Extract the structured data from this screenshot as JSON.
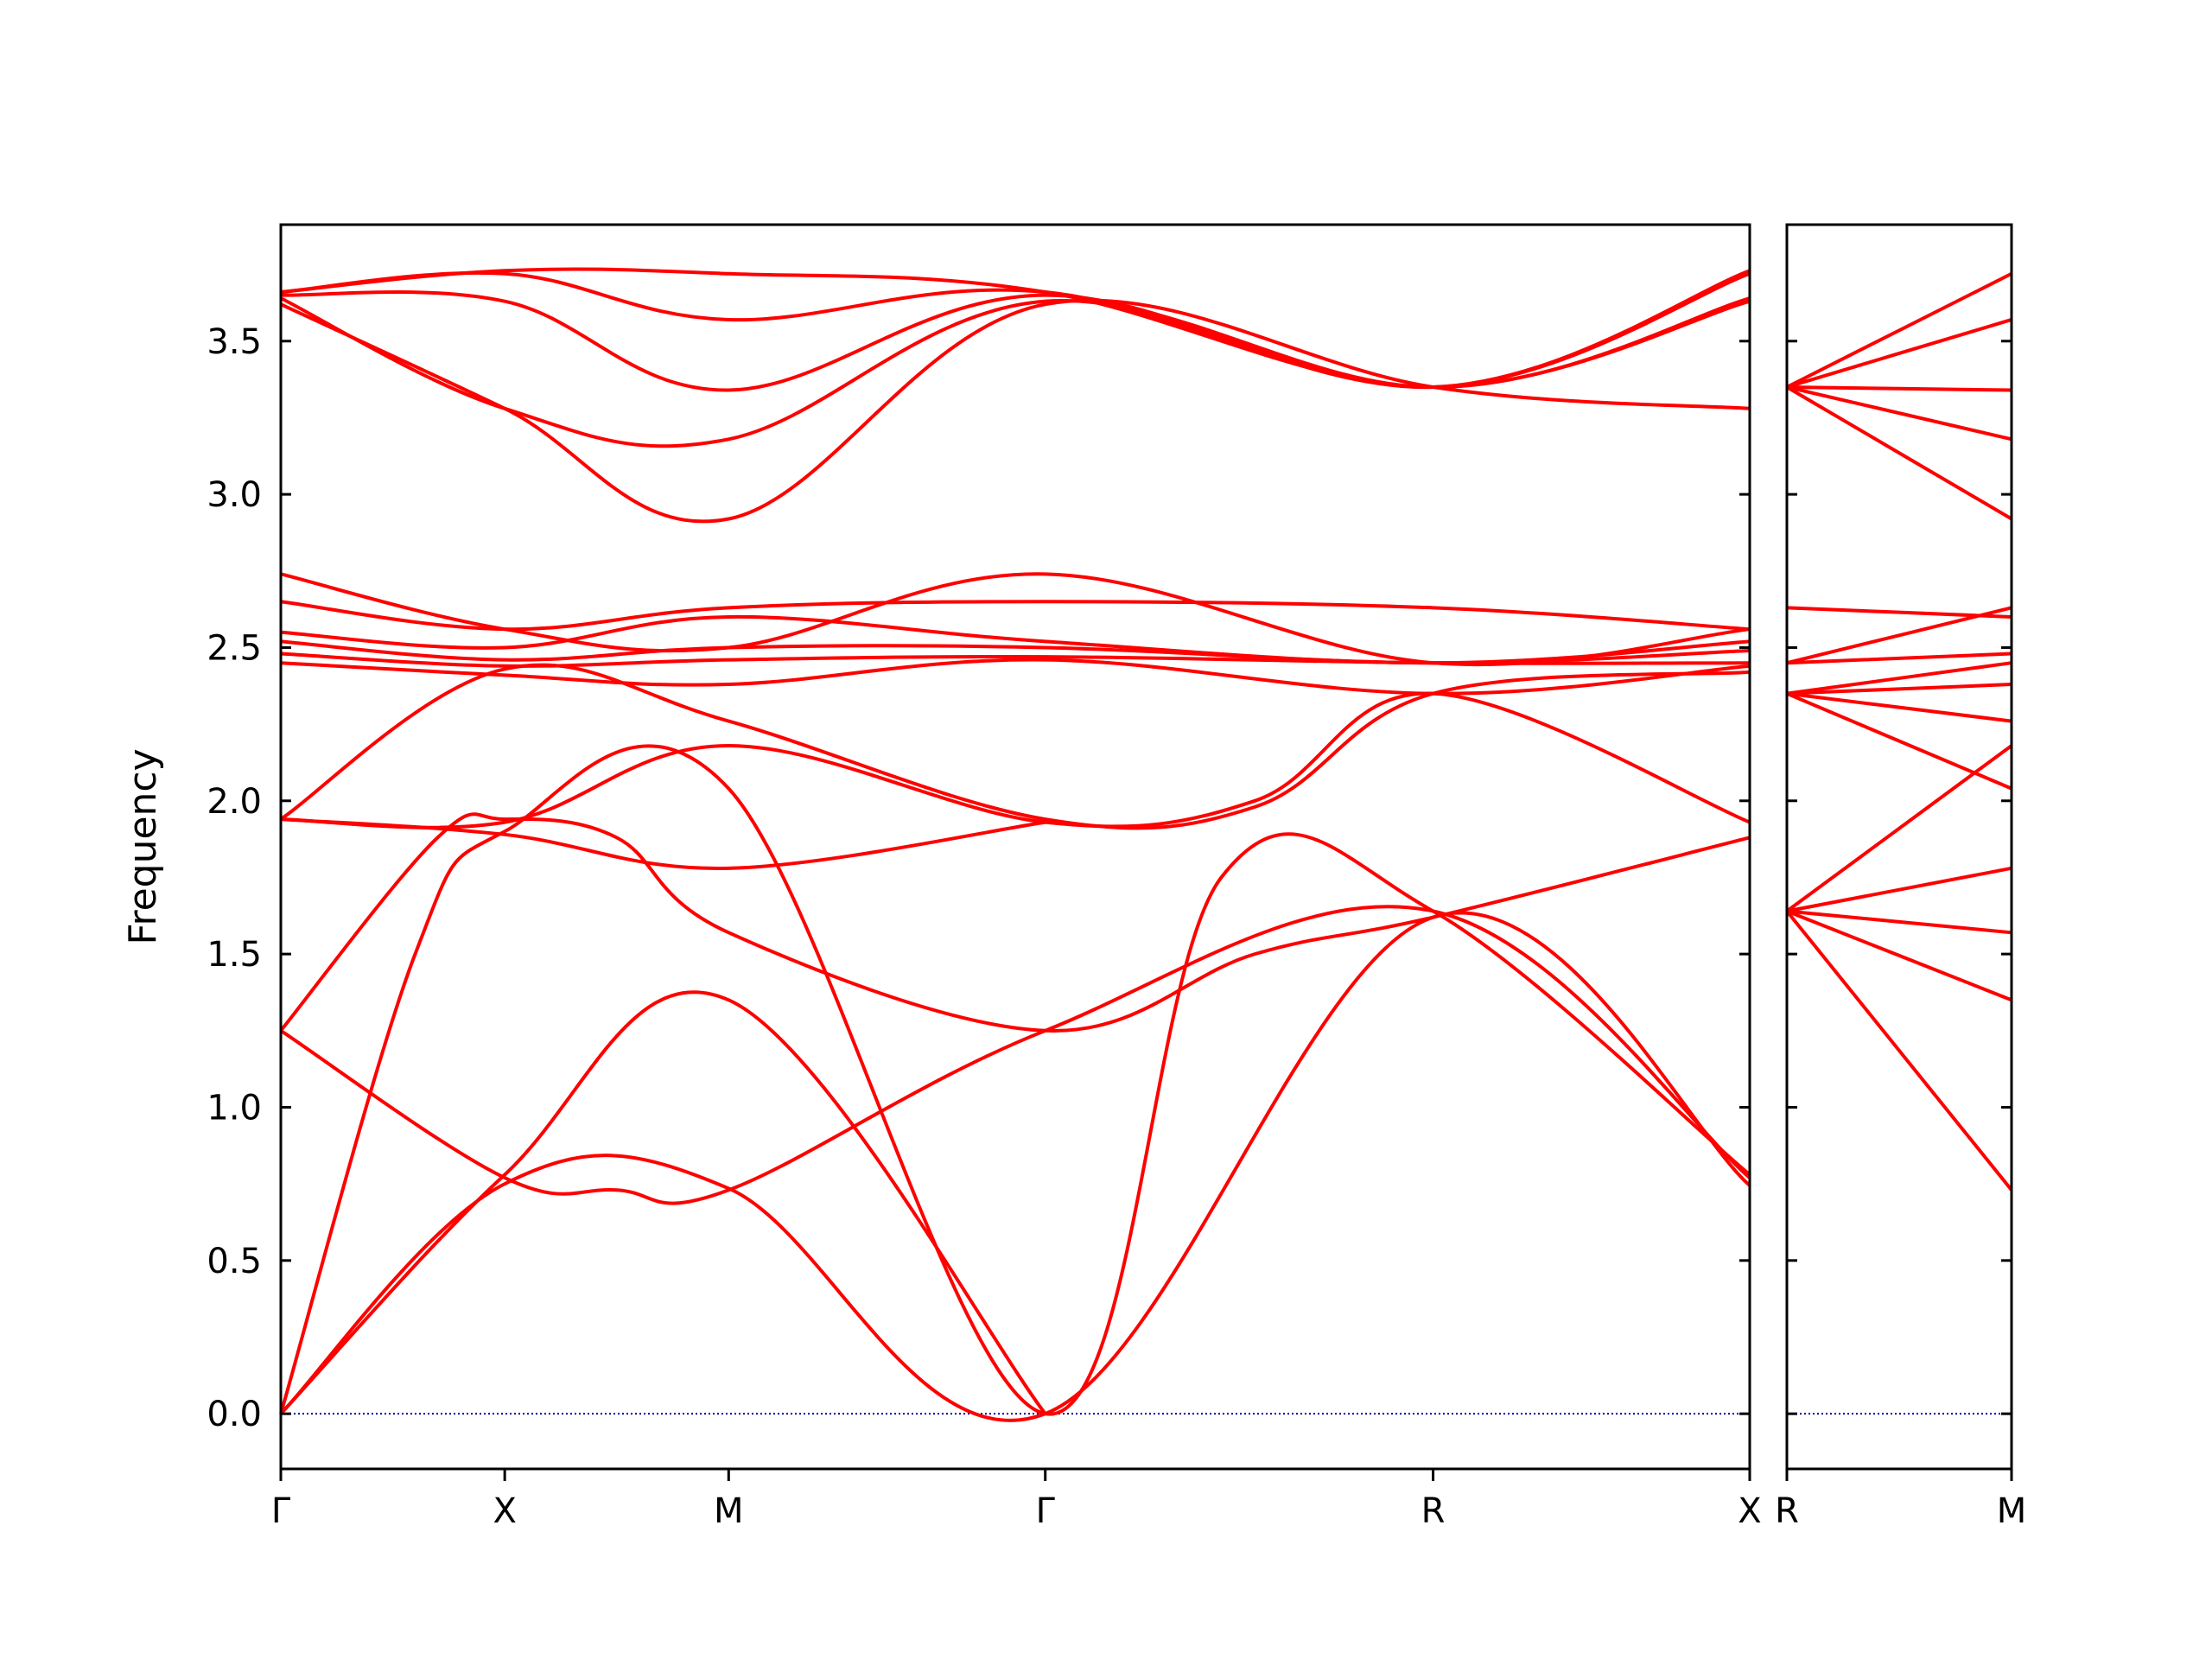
{
  "chart_data": {
    "type": "line",
    "ylabel": "Frequency",
    "ylim": [
      -0.18,
      3.88
    ],
    "yticks": [
      0.0,
      0.5,
      1.0,
      1.5,
      2.0,
      2.5,
      3.0,
      3.5
    ],
    "ytick_labels": [
      "0.0",
      "0.5",
      "1.0",
      "1.5",
      "2.0",
      "2.5",
      "3.0",
      "3.5"
    ],
    "grid": false,
    "colors": {
      "bands": "#ff0000",
      "zero_line": "#0000aa",
      "axes": "#000000"
    },
    "panels": [
      {
        "x_labels": [
          "Γ",
          "X",
          "M",
          "Γ",
          "R",
          "X"
        ],
        "x_positions": [
          0,
          1,
          2,
          3.414,
          5.146,
          6.56
        ],
        "series": [
          {
            "x": [
              0,
              1,
              2,
              3.414,
              5.146,
              6.56
            ],
            "y": [
              0.0,
              0.75,
              0.735,
              0.0,
              1.62,
              0.745
            ]
          },
          {
            "x": [
              0,
              0.6,
              1,
              2,
              3.414,
              4.2,
              5.146,
              6.56
            ],
            "y": [
              0.0,
              1.5,
              1.9,
              2.04,
              0.0,
              1.75,
              1.64,
              0.78
            ]
          },
          {
            "x": [
              0,
              1,
              2,
              3.414
            ],
            "y": [
              0.0,
              0.78,
              1.35,
              0.0
            ]
          },
          {
            "x": [
              0,
              1,
              1.5,
              2,
              3.414,
              5.146,
              6.56
            ],
            "y": [
              1.25,
              0.77,
              0.73,
              0.73,
              1.25,
              1.64,
              0.77
            ]
          },
          {
            "x": [
              0,
              0.7,
              1,
              1.5,
              2,
              3.414,
              4.35,
              5.146,
              6.56
            ],
            "y": [
              1.25,
              1.88,
              1.94,
              1.88,
              1.57,
              1.25,
              1.5,
              1.62,
              1.88
            ]
          },
          {
            "x": [
              0,
              1,
              2,
              3.414
            ],
            "y": [
              1.94,
              1.89,
              1.78,
              1.93
            ]
          },
          {
            "x": [
              0,
              1,
              2,
              3.414,
              4.35,
              5.146,
              6.56
            ],
            "y": [
              1.94,
              1.93,
              2.18,
              1.93,
              2.0,
              2.35,
              1.93
            ]
          },
          {
            "x": [
              0,
              1,
              2,
              3.414,
              4.35,
              5.146,
              6.56
            ],
            "y": [
              1.94,
              2.43,
              2.26,
              1.94,
              1.98,
              2.35,
              2.42
            ]
          },
          {
            "x": [
              0,
              1,
              2,
              3.414,
              5.146,
              6.56
            ],
            "y": [
              2.45,
              2.41,
              2.38,
              2.46,
              2.35,
              2.44
            ]
          },
          {
            "x": [
              0,
              1,
              2,
              3.414,
              5.146,
              6.56
            ],
            "y": [
              2.48,
              2.44,
              2.46,
              2.47,
              2.45,
              2.45
            ]
          },
          {
            "x": [
              0,
              1,
              2,
              3.414,
              5.146,
              6.56
            ],
            "y": [
              2.52,
              2.46,
              2.5,
              2.5,
              2.45,
              2.49
            ]
          },
          {
            "x": [
              0,
              1,
              2,
              3.414,
              5.146,
              6.56
            ],
            "y": [
              2.55,
              2.5,
              2.6,
              2.52,
              2.45,
              2.52
            ]
          },
          {
            "x": [
              0,
              1,
              2,
              3.414,
              5.146,
              6.56
            ],
            "y": [
              2.65,
              2.56,
              2.63,
              2.65,
              2.63,
              2.56
            ]
          },
          {
            "x": [
              0,
              1,
              2,
              3.414,
              5.146,
              6.56
            ],
            "y": [
              2.74,
              2.56,
              2.5,
              2.74,
              2.45,
              2.56
            ]
          },
          {
            "x": [
              0,
              1,
              2,
              3.414,
              5.146,
              6.56
            ],
            "y": [
              3.62,
              3.28,
              2.92,
              3.62,
              3.35,
              3.28
            ]
          },
          {
            "x": [
              0,
              1,
              2,
              3.414,
              5.146,
              6.56
            ],
            "y": [
              3.64,
              3.28,
              3.18,
              3.63,
              3.35,
              3.63
            ]
          },
          {
            "x": [
              0,
              1,
              2,
              3.414,
              5.146,
              6.56
            ],
            "y": [
              3.65,
              3.63,
              3.34,
              3.65,
              3.35,
              3.73
            ]
          },
          {
            "x": [
              0,
              1,
              2,
              3.414,
              5.146,
              6.56
            ],
            "y": [
              3.66,
              3.72,
              3.57,
              3.66,
              3.35,
              3.72
            ]
          },
          {
            "x": [
              0,
              1,
              2,
              3.414,
              5.146,
              6.56
            ],
            "y": [
              3.66,
              3.73,
              3.72,
              3.66,
              3.35,
              3.64
            ]
          }
        ]
      },
      {
        "x_labels": [
          "R",
          "M"
        ],
        "x_positions": [
          0,
          1
        ],
        "series": [
          {
            "x": [
              0,
              1
            ],
            "y": [
              1.64,
              0.73
            ]
          },
          {
            "x": [
              0,
              1
            ],
            "y": [
              1.64,
              1.35
            ]
          },
          {
            "x": [
              0,
              1
            ],
            "y": [
              1.64,
              1.57
            ]
          },
          {
            "x": [
              0,
              1
            ],
            "y": [
              1.64,
              1.78
            ]
          },
          {
            "x": [
              0,
              1
            ],
            "y": [
              1.64,
              2.18
            ]
          },
          {
            "x": [
              0,
              1
            ],
            "y": [
              2.35,
              2.04
            ]
          },
          {
            "x": [
              0,
              1
            ],
            "y": [
              2.35,
              2.26
            ]
          },
          {
            "x": [
              0,
              1
            ],
            "y": [
              2.35,
              2.38
            ]
          },
          {
            "x": [
              0,
              1
            ],
            "y": [
              2.35,
              2.45
            ]
          },
          {
            "x": [
              0,
              1
            ],
            "y": [
              2.45,
              2.48
            ]
          },
          {
            "x": [
              0,
              1
            ],
            "y": [
              2.45,
              2.63
            ]
          },
          {
            "x": [
              0,
              1
            ],
            "y": [
              2.63,
              2.6
            ]
          },
          {
            "x": [
              0,
              1
            ],
            "y": [
              3.35,
              2.92
            ]
          },
          {
            "x": [
              0,
              1
            ],
            "y": [
              3.35,
              3.18
            ]
          },
          {
            "x": [
              0,
              1
            ],
            "y": [
              3.35,
              3.34
            ]
          },
          {
            "x": [
              0,
              1
            ],
            "y": [
              3.35,
              3.57
            ]
          },
          {
            "x": [
              0,
              1
            ],
            "y": [
              3.35,
              3.72
            ]
          }
        ]
      }
    ]
  }
}
